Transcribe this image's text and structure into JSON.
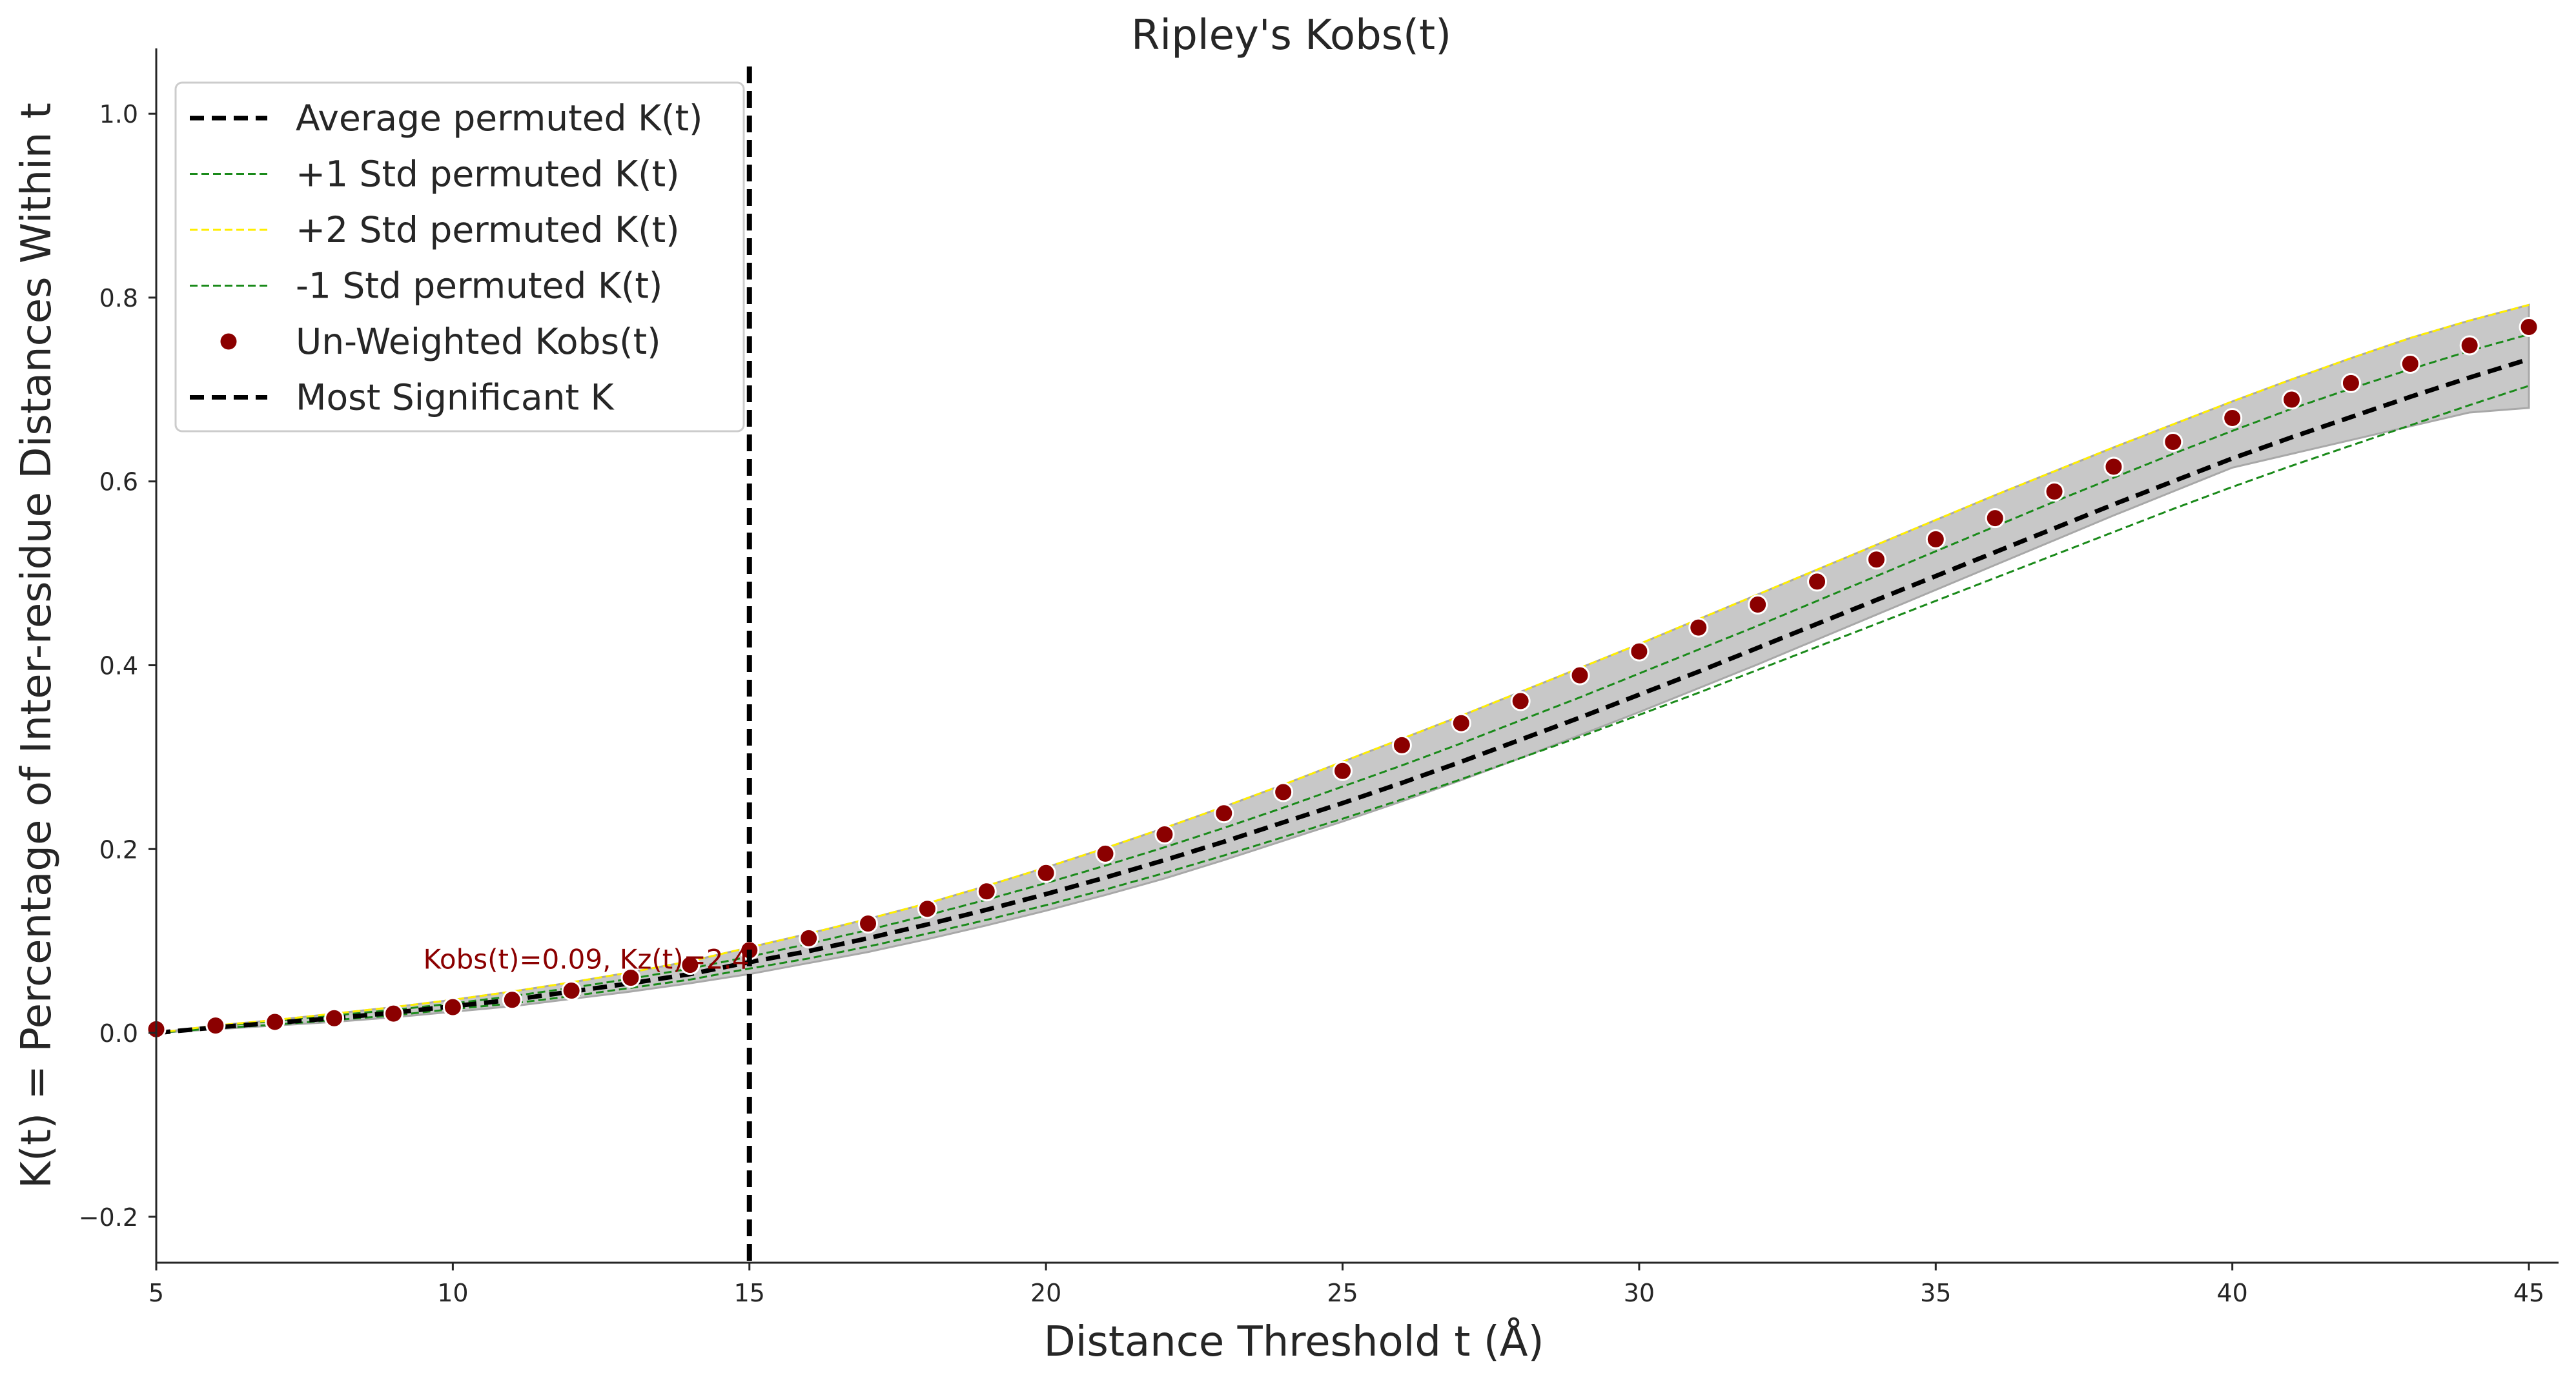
{
  "chart_data": {
    "type": "line",
    "title": "Ripley's Kobs(t)",
    "xlabel": "Distance Threshold t (Å)",
    "ylabel": "K(t) = Percentage of Inter-residue Distances Within t",
    "xlim": [
      5,
      45.5
    ],
    "ylim": [
      -0.25,
      1.05
    ],
    "xticks": [
      5,
      10,
      15,
      20,
      25,
      30,
      35,
      40,
      45
    ],
    "yticks": [
      -0.2,
      0.0,
      0.2,
      0.4,
      0.6,
      0.8,
      1.0
    ],
    "ytick_labels": [
      "−0.2",
      "0.0",
      "0.2",
      "0.4",
      "0.6",
      "0.8",
      "1.0"
    ],
    "grid": false,
    "legend_position": "top-left",
    "x": [
      5,
      6,
      7,
      8,
      9,
      10,
      11,
      12,
      13,
      14,
      15,
      16,
      17,
      18,
      19,
      20,
      21,
      22,
      23,
      24,
      25,
      26,
      27,
      28,
      29,
      30,
      31,
      32,
      33,
      34,
      35,
      36,
      37,
      38,
      39,
      40,
      41,
      42,
      43,
      44,
      45
    ],
    "band": {
      "name": "",
      "color": "#c8c8c8",
      "lower": [
        0.0,
        0.004,
        0.008,
        0.012,
        0.017,
        0.023,
        0.029,
        0.037,
        0.045,
        0.054,
        0.064,
        0.076,
        0.088,
        0.102,
        0.117,
        0.133,
        0.15,
        0.168,
        0.188,
        0.209,
        0.23,
        0.252,
        0.275,
        0.299,
        0.324,
        0.349,
        0.375,
        0.401,
        0.428,
        0.455,
        0.482,
        0.509,
        0.536,
        0.563,
        0.589,
        0.615,
        0.63,
        0.645,
        0.66,
        0.675,
        0.68
      ],
      "upper": [
        0.0,
        0.008,
        0.014,
        0.021,
        0.028,
        0.036,
        0.045,
        0.055,
        0.066,
        0.078,
        0.093,
        0.108,
        0.124,
        0.141,
        0.16,
        0.18,
        0.201,
        0.223,
        0.246,
        0.27,
        0.295,
        0.32,
        0.345,
        0.371,
        0.397,
        0.423,
        0.45,
        0.477,
        0.504,
        0.531,
        0.558,
        0.585,
        0.611,
        0.637,
        0.662,
        0.687,
        0.711,
        0.734,
        0.756,
        0.775,
        0.792
      ]
    },
    "series": [
      {
        "name": "Average permuted K(t)",
        "style": "dashed",
        "color": "#000000",
        "values": [
          0.0,
          0.006,
          0.011,
          0.016,
          0.022,
          0.029,
          0.036,
          0.045,
          0.054,
          0.064,
          0.077,
          0.089,
          0.103,
          0.118,
          0.134,
          0.151,
          0.169,
          0.188,
          0.208,
          0.229,
          0.25,
          0.272,
          0.295,
          0.319,
          0.343,
          0.368,
          0.393,
          0.419,
          0.445,
          0.471,
          0.497,
          0.523,
          0.549,
          0.575,
          0.6,
          0.625,
          0.648,
          0.67,
          0.692,
          0.713,
          0.733
        ]
      },
      {
        "name": "+1 Std permuted K(t)",
        "style": "dashed",
        "color": "#1a8a1a",
        "values": [
          0.0,
          0.007,
          0.013,
          0.019,
          0.025,
          0.032,
          0.04,
          0.049,
          0.059,
          0.07,
          0.083,
          0.097,
          0.112,
          0.128,
          0.145,
          0.163,
          0.182,
          0.202,
          0.223,
          0.245,
          0.268,
          0.291,
          0.315,
          0.34,
          0.365,
          0.391,
          0.417,
          0.443,
          0.47,
          0.497,
          0.524,
          0.551,
          0.578,
          0.604,
          0.63,
          0.655,
          0.679,
          0.701,
          0.722,
          0.742,
          0.76
        ]
      },
      {
        "name": "+2 Std permuted K(t)",
        "style": "dashed",
        "color": "#ffee00",
        "values": [
          0.0,
          0.008,
          0.014,
          0.021,
          0.028,
          0.036,
          0.045,
          0.055,
          0.066,
          0.078,
          0.093,
          0.108,
          0.124,
          0.141,
          0.16,
          0.18,
          0.201,
          0.223,
          0.246,
          0.27,
          0.295,
          0.32,
          0.345,
          0.371,
          0.397,
          0.423,
          0.45,
          0.477,
          0.504,
          0.531,
          0.558,
          0.585,
          0.611,
          0.637,
          0.662,
          0.687,
          0.711,
          0.734,
          0.756,
          0.775,
          0.792
        ]
      },
      {
        "name": "-1 Std permuted K(t)",
        "style": "dashed",
        "color": "#1a8a1a",
        "values": [
          0.0,
          0.005,
          0.009,
          0.014,
          0.019,
          0.026,
          0.032,
          0.04,
          0.049,
          0.058,
          0.07,
          0.081,
          0.094,
          0.108,
          0.123,
          0.139,
          0.156,
          0.174,
          0.193,
          0.213,
          0.233,
          0.254,
          0.276,
          0.299,
          0.322,
          0.346,
          0.37,
          0.395,
          0.42,
          0.445,
          0.47,
          0.495,
          0.52,
          0.545,
          0.57,
          0.594,
          0.617,
          0.639,
          0.661,
          0.683,
          0.704
        ]
      }
    ],
    "scatter": {
      "name": "Un-Weighted Kobs(t)",
      "color": "#8b0000",
      "values": [
        0.004,
        0.008,
        0.012,
        0.016,
        0.021,
        0.028,
        0.036,
        0.046,
        0.06,
        0.074,
        0.09,
        0.103,
        0.119,
        0.135,
        0.154,
        0.174,
        0.195,
        0.216,
        0.239,
        0.262,
        0.285,
        0.313,
        0.337,
        0.361,
        0.389,
        0.415,
        0.441,
        0.466,
        0.491,
        0.515,
        0.537,
        0.56,
        0.589,
        0.616,
        0.643,
        0.669,
        0.689,
        0.707,
        0.728,
        0.748,
        0.768
      ]
    },
    "vline": {
      "name": "Most Significant K",
      "x": 15,
      "style": "dashed",
      "color": "#000000"
    },
    "annotation": {
      "text": "Kobs(t)=0.09, Kz(t)=2.4",
      "x": 9.5,
      "y": 0.07,
      "color": "#8b0000"
    },
    "legend": [
      "Average permuted K(t)",
      "+1 Std permuted K(t)",
      "+2 Std permuted K(t)",
      "-1 Std permuted K(t)",
      "Un-Weighted Kobs(t)",
      "Most Significant K"
    ]
  }
}
